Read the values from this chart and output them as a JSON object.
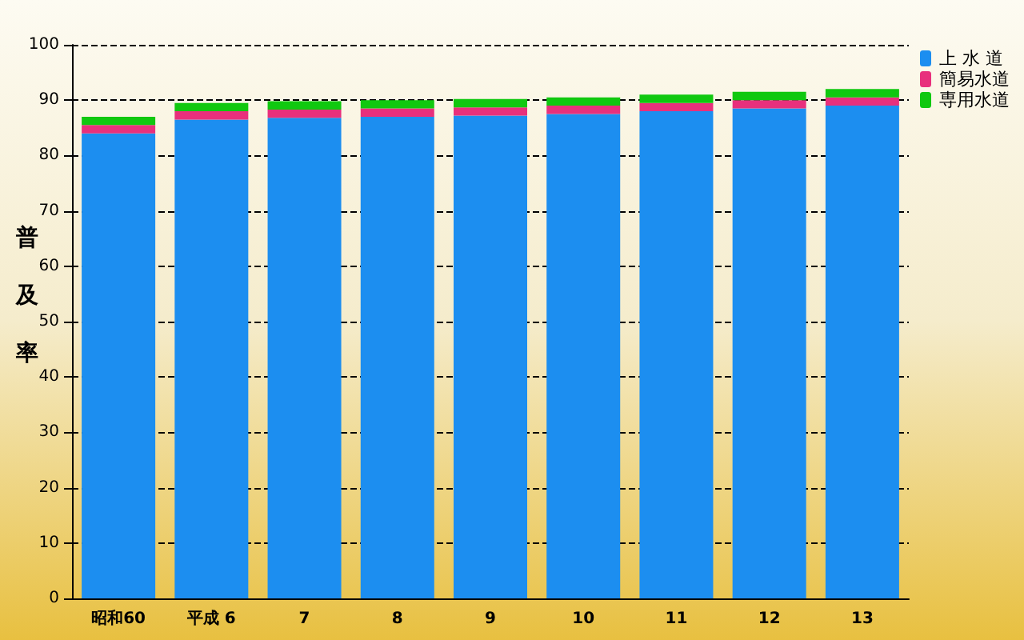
{
  "chart_data": {
    "type": "bar",
    "stacked": true,
    "ylabel": "普及率",
    "categories": [
      "昭和60",
      "平成 6",
      "7",
      "8",
      "9",
      "10",
      "11",
      "12",
      "13"
    ],
    "series": [
      {
        "name": "上 水 道",
        "color": "#1c8ef0",
        "values": [
          84,
          86.5,
          86.8,
          87,
          87.2,
          87.5,
          88,
          88.5,
          89
        ]
      },
      {
        "name": "簡易水道",
        "color": "#e8307c",
        "values": [
          1.5,
          1.5,
          1.5,
          1.5,
          1.5,
          1.5,
          1.5,
          1.5,
          1.5
        ]
      },
      {
        "name": "専用水道",
        "color": "#10c810",
        "values": [
          1.5,
          1.5,
          1.5,
          1.5,
          1.5,
          1.5,
          1.5,
          1.5,
          1.5
        ]
      }
    ],
    "ylim": [
      0,
      100
    ],
    "yticks": [
      0,
      10,
      20,
      30,
      40,
      50,
      60,
      70,
      80,
      90,
      100
    ],
    "grid": "y",
    "legend": "top right"
  }
}
